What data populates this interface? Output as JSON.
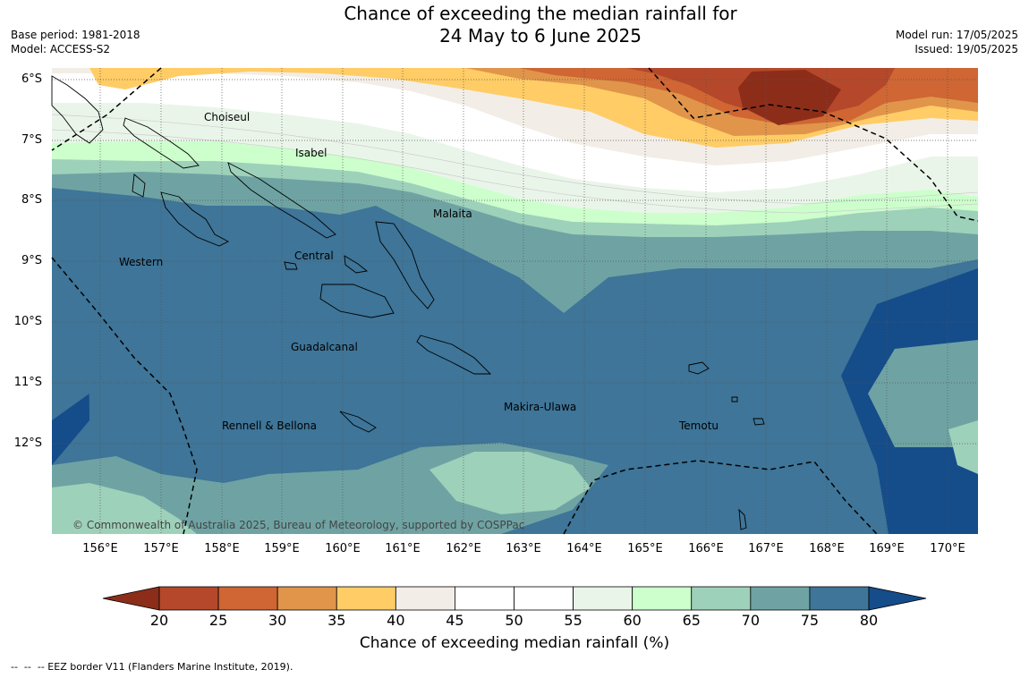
{
  "title_line1": "Chance of exceeding the median rainfall for",
  "title_line2": "24 May to 6 June 2025",
  "base_period": "Base period: 1981-2018",
  "model": "Model: ACCESS-S2",
  "model_run": "Model run: 17/05/2025",
  "issued": "Issued: 19/05/2025",
  "lat_labels": [
    "6°S",
    "7°S",
    "8°S",
    "9°S",
    "10°S",
    "11°S",
    "12°S"
  ],
  "lon_labels": [
    "156°E",
    "157°E",
    "158°E",
    "159°E",
    "160°E",
    "161°E",
    "162°E",
    "163°E",
    "164°E",
    "165°E",
    "166°E",
    "167°E",
    "168°E",
    "169°E",
    "170°E"
  ],
  "regions": [
    "Choiseul",
    "Isabel",
    "Malaita",
    "Western",
    "Central",
    "Guadalcanal",
    "Makira-Ulawa",
    "Rennell & Bellona",
    "Temotu"
  ],
  "copyright": "© Commonwealth of Australia 2025, Bureau of Meteorology, supported by COSPPac",
  "colorbar": {
    "ticks": [
      "20",
      "25",
      "30",
      "35",
      "40",
      "45",
      "50",
      "55",
      "60",
      "65",
      "70",
      "75",
      "80"
    ],
    "colors": [
      "#8c2d1a",
      "#b5482a",
      "#cf6633",
      "#e0954a",
      "#ffcc66",
      "#f2ede6",
      "#ffffff",
      "#ffffff",
      "#eaf5ea",
      "#ccffcc",
      "#9ed1ba",
      "#6fa3a3",
      "#3e7598",
      "#154c8a"
    ],
    "label": "Chance of exceeding median rainfall (%)"
  },
  "footnote": "--  --  -- EEZ border V11 (Flanders Marine Institute, 2019)."
}
